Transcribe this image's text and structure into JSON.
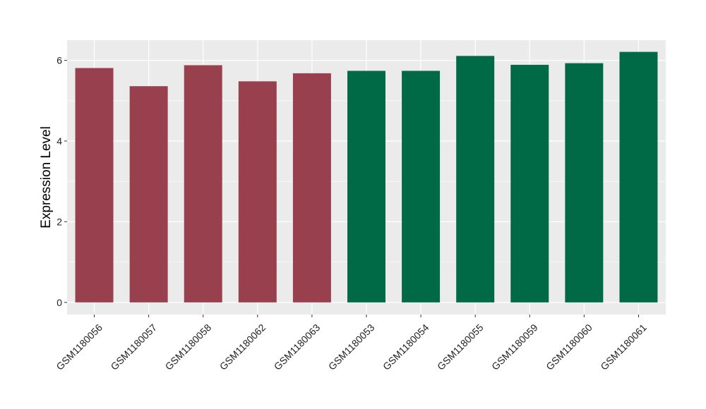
{
  "chart_data": {
    "type": "bar",
    "title": "",
    "xlabel": "",
    "ylabel": "Expression Level",
    "categories": [
      "GSM1180056",
      "GSM1180057",
      "GSM1180058",
      "GSM1180062",
      "GSM1180063",
      "GSM1180053",
      "GSM1180054",
      "GSM1180055",
      "GSM1180059",
      "GSM1180060",
      "GSM1180061"
    ],
    "values": [
      5.81,
      5.36,
      5.88,
      5.48,
      5.68,
      5.74,
      5.74,
      6.11,
      5.89,
      5.93,
      6.21
    ],
    "groups": [
      0,
      0,
      0,
      0,
      0,
      1,
      1,
      1,
      1,
      1,
      1
    ],
    "colors": [
      "#99404f",
      "#006945"
    ],
    "ylim": [
      -0.3,
      6.5
    ],
    "yticks": [
      0,
      2,
      4,
      6
    ],
    "grid": true,
    "panel_background": "#ebebeb",
    "grid_color": "#ffffff",
    "legend": "none"
  }
}
